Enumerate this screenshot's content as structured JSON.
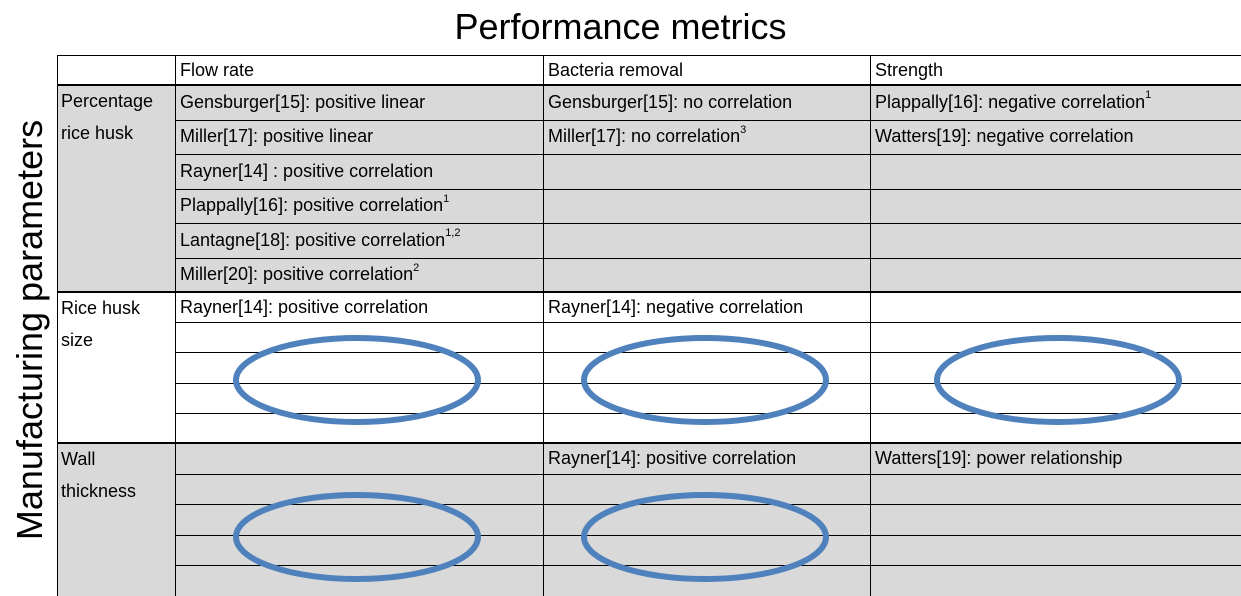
{
  "title": "Performance metrics",
  "side_label": "Manufacturing parameters",
  "columns": [
    "Flow rate",
    "Bacteria removal",
    "Strength"
  ],
  "groups": [
    {
      "label": "Percentage rice husk",
      "shaded": true,
      "rows": [
        [
          {
            "text": "Gensburger[15]: positive linear"
          },
          {
            "text": "Gensburger[15]: no correlation"
          },
          {
            "text": "Plappally[16]: negative correlation",
            "sup": "1"
          }
        ],
        [
          {
            "text": "Miller[17]: positive linear"
          },
          {
            "text": "Miller[17]: no correlation",
            "sup": "3"
          },
          {
            "text": "Watters[19]: negative correlation"
          }
        ],
        [
          {
            "text": "Rayner[14] : positive correlation"
          },
          null,
          null
        ],
        [
          {
            "text": "Plappally[16]: positive correlation",
            "sup": "1"
          },
          null,
          null
        ],
        [
          {
            "text": "Lantagne[18]: positive correlation",
            "sup": "1,2"
          },
          null,
          null
        ],
        [
          {
            "text": "Miller[20]: positive correlation",
            "sup": "2"
          },
          null,
          null
        ]
      ]
    },
    {
      "label": "Rice husk size",
      "shaded": false,
      "rows": [
        [
          {
            "text": "Rayner[14]: positive correlation"
          },
          {
            "text": "Rayner[14]: negative correlation"
          },
          null
        ],
        [
          null,
          null,
          null
        ],
        [
          null,
          null,
          null
        ],
        [
          null,
          null,
          null
        ],
        [
          null,
          null,
          null
        ]
      ]
    },
    {
      "label": "Wall thickness",
      "shaded": true,
      "rows": [
        [
          null,
          {
            "text": "Rayner[14]: positive correlation"
          },
          {
            "text": "Watters[19]: power relationship"
          }
        ],
        [
          null,
          null,
          null
        ],
        [
          null,
          null,
          null
        ],
        [
          null,
          null,
          null
        ],
        [
          null,
          null,
          null
        ]
      ]
    }
  ]
}
